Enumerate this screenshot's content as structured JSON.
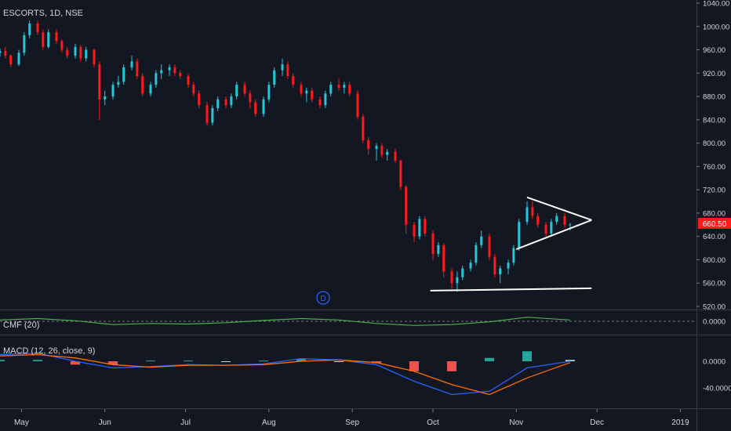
{
  "symbol": "ESCORTS, 1D, NSE",
  "colors": {
    "background": "#131722",
    "grid": "#2a2e39",
    "up": "#26c6da",
    "down": "#ff1a1a",
    "axis_text": "#d1d4dc",
    "drawing": "#ffffff",
    "cmf": "#4caf50",
    "macd": "#2962ff",
    "signal": "#ff6d00",
    "hist_pos": "#26a69a",
    "hist_pos_weak": "#b2dfdb",
    "hist_neg": "#ef5350",
    "hist_neg_weak": "#ffcdd2",
    "price_tag": "#ff1a1a",
    "dividend": "#2962ff"
  },
  "price_axis": {
    "ticks": [
      "1040.00",
      "1000.00",
      "960.00",
      "920.00",
      "880.00",
      "840.00",
      "800.00",
      "760.00",
      "720.00",
      "680.00",
      "640.00",
      "600.00",
      "560.00",
      "520.00"
    ],
    "last_price_label": "660.50"
  },
  "time_axis": {
    "ticks": [
      "May",
      "Jun",
      "Jul",
      "Aug",
      "Sep",
      "Oct",
      "Nov",
      "Dec",
      "2019"
    ]
  },
  "cmf": {
    "label": "CMF (20)",
    "axis_ticks": [
      "0.0000"
    ]
  },
  "macd": {
    "label": "MACD (12, 26, close, 9)",
    "axis_ticks": [
      "0.0000",
      "-40.0000"
    ]
  },
  "dividend_marker": "D",
  "chart_data": [
    {
      "type": "candlestick",
      "title": "ESCORTS, 1D, NSE",
      "ylim": [
        520,
        1040
      ],
      "grid": false,
      "x_range": [
        "2018-04-23",
        "2019-01-07"
      ],
      "last_price": 660.5,
      "ohlc": [
        [
          "2018-04-23",
          955,
          962,
          948,
          958
        ],
        [
          "2018-04-25",
          958,
          965,
          945,
          950
        ],
        [
          "2018-04-27",
          950,
          952,
          930,
          935
        ],
        [
          "2018-04-30",
          935,
          960,
          932,
          955
        ],
        [
          "2018-05-02",
          955,
          990,
          950,
          985
        ],
        [
          "2018-05-04",
          985,
          1010,
          980,
          1005
        ],
        [
          "2018-05-07",
          1005,
          1010,
          985,
          990
        ],
        [
          "2018-05-09",
          990,
          995,
          960,
          965
        ],
        [
          "2018-05-11",
          965,
          995,
          962,
          990
        ],
        [
          "2018-05-14",
          990,
          995,
          970,
          975
        ],
        [
          "2018-05-16",
          975,
          978,
          955,
          960
        ],
        [
          "2018-05-18",
          960,
          965,
          945,
          950
        ],
        [
          "2018-05-21",
          950,
          970,
          945,
          965
        ],
        [
          "2018-05-23",
          965,
          968,
          940,
          945
        ],
        [
          "2018-05-25",
          945,
          965,
          940,
          960
        ],
        [
          "2018-05-28",
          960,
          962,
          930,
          935
        ],
        [
          "2018-05-30",
          935,
          940,
          840,
          875
        ],
        [
          "2018-06-01",
          875,
          890,
          865,
          880
        ],
        [
          "2018-06-04",
          880,
          905,
          875,
          900
        ],
        [
          "2018-06-06",
          900,
          915,
          895,
          905
        ],
        [
          "2018-06-08",
          905,
          935,
          900,
          930
        ],
        [
          "2018-06-11",
          930,
          950,
          925,
          940
        ],
        [
          "2018-06-13",
          940,
          945,
          910,
          915
        ],
        [
          "2018-06-15",
          915,
          920,
          880,
          885
        ],
        [
          "2018-06-18",
          885,
          905,
          880,
          900
        ],
        [
          "2018-06-20",
          900,
          925,
          895,
          920
        ],
        [
          "2018-06-22",
          920,
          935,
          910,
          925
        ],
        [
          "2018-06-25",
          925,
          935,
          915,
          930
        ],
        [
          "2018-06-27",
          930,
          935,
          915,
          920
        ],
        [
          "2018-06-29",
          920,
          925,
          910,
          915
        ],
        [
          "2018-07-02",
          915,
          918,
          895,
          900
        ],
        [
          "2018-07-04",
          900,
          905,
          880,
          885
        ],
        [
          "2018-07-06",
          885,
          890,
          860,
          865
        ],
        [
          "2018-07-09",
          865,
          870,
          830,
          835
        ],
        [
          "2018-07-11",
          835,
          865,
          830,
          860
        ],
        [
          "2018-07-13",
          860,
          880,
          855,
          875
        ],
        [
          "2018-07-16",
          875,
          880,
          860,
          865
        ],
        [
          "2018-07-18",
          865,
          885,
          860,
          880
        ],
        [
          "2018-07-20",
          880,
          905,
          875,
          900
        ],
        [
          "2018-07-23",
          900,
          905,
          880,
          885
        ],
        [
          "2018-07-25",
          885,
          890,
          860,
          870
        ],
        [
          "2018-07-27",
          870,
          875,
          845,
          850
        ],
        [
          "2018-07-30",
          850,
          880,
          845,
          875
        ],
        [
          "2018-08-01",
          875,
          905,
          870,
          900
        ],
        [
          "2018-08-03",
          900,
          930,
          895,
          925
        ],
        [
          "2018-08-06",
          925,
          945,
          915,
          935
        ],
        [
          "2018-08-08",
          935,
          940,
          910,
          915
        ],
        [
          "2018-08-10",
          915,
          920,
          895,
          900
        ],
        [
          "2018-08-13",
          900,
          905,
          880,
          885
        ],
        [
          "2018-08-15",
          885,
          895,
          870,
          890
        ],
        [
          "2018-08-17",
          890,
          895,
          870,
          875
        ],
        [
          "2018-08-20",
          875,
          880,
          860,
          865
        ],
        [
          "2018-08-22",
          865,
          890,
          860,
          885
        ],
        [
          "2018-08-24",
          885,
          905,
          880,
          900
        ],
        [
          "2018-08-27",
          900,
          910,
          890,
          895
        ],
        [
          "2018-08-29",
          895,
          905,
          885,
          900
        ],
        [
          "2018-08-31",
          900,
          905,
          880,
          885
        ],
        [
          "2018-09-03",
          885,
          890,
          840,
          845
        ],
        [
          "2018-09-05",
          845,
          850,
          800,
          805
        ],
        [
          "2018-09-07",
          805,
          810,
          780,
          790
        ],
        [
          "2018-09-10",
          790,
          800,
          770,
          795
        ],
        [
          "2018-09-12",
          795,
          800,
          775,
          780
        ],
        [
          "2018-09-14",
          780,
          790,
          770,
          785
        ],
        [
          "2018-09-17",
          785,
          790,
          765,
          770
        ],
        [
          "2018-09-19",
          770,
          772,
          720,
          725
        ],
        [
          "2018-09-21",
          725,
          728,
          645,
          660
        ],
        [
          "2018-09-24",
          660,
          665,
          630,
          640
        ],
        [
          "2018-09-26",
          640,
          675,
          635,
          670
        ],
        [
          "2018-09-28",
          670,
          675,
          640,
          645
        ],
        [
          "2018-10-01",
          645,
          650,
          600,
          610
        ],
        [
          "2018-10-03",
          610,
          630,
          605,
          625
        ],
        [
          "2018-10-05",
          625,
          628,
          570,
          580
        ],
        [
          "2018-10-08",
          580,
          585,
          550,
          560
        ],
        [
          "2018-10-10",
          560,
          580,
          545,
          570
        ],
        [
          "2018-10-12",
          570,
          590,
          565,
          585
        ],
        [
          "2018-10-15",
          585,
          600,
          580,
          595
        ],
        [
          "2018-10-17",
          595,
          630,
          590,
          625
        ],
        [
          "2018-10-19",
          625,
          650,
          620,
          640
        ],
        [
          "2018-10-22",
          640,
          645,
          600,
          605
        ],
        [
          "2018-10-24",
          605,
          610,
          570,
          575
        ],
        [
          "2018-10-26",
          575,
          590,
          560,
          585
        ],
        [
          "2018-10-29",
          585,
          600,
          575,
          595
        ],
        [
          "2018-10-31",
          595,
          625,
          590,
          620
        ],
        [
          "2018-11-02",
          620,
          670,
          615,
          665
        ],
        [
          "2018-11-05",
          665,
          700,
          660,
          690
        ],
        [
          "2018-11-07",
          690,
          700,
          670,
          675
        ],
        [
          "2018-11-09",
          675,
          680,
          655,
          660
        ],
        [
          "2018-11-12",
          660,
          665,
          640,
          645
        ],
        [
          "2018-11-14",
          645,
          670,
          640,
          665
        ],
        [
          "2018-11-16",
          665,
          680,
          660,
          675
        ],
        [
          "2018-11-19",
          675,
          680,
          655,
          660
        ],
        [
          "2018-11-21",
          660,
          663,
          650,
          660.5
        ]
      ]
    },
    {
      "type": "line",
      "title": "CMF (20)",
      "ylim": [
        -0.3,
        0.3
      ],
      "x": [
        "2018-04-23",
        "2018-05-07",
        "2018-05-21",
        "2018-06-04",
        "2018-06-18",
        "2018-07-02",
        "2018-07-16",
        "2018-07-30",
        "2018-08-13",
        "2018-08-27",
        "2018-09-10",
        "2018-09-24",
        "2018-10-08",
        "2018-10-22",
        "2018-11-05",
        "2018-11-21"
      ],
      "series": [
        {
          "values": [
            0.05,
            0.1,
            0.02,
            -0.12,
            -0.08,
            -0.1,
            -0.05,
            0.03,
            0.1,
            0.05,
            -0.08,
            -0.15,
            -0.12,
            -0.02,
            0.15,
            0.05
          ]
        }
      ]
    },
    {
      "type": "line",
      "title": "MACD (12, 26, close, 9)",
      "ylim": [
        -60,
        20
      ],
      "x": [
        "2018-04-23",
        "2018-05-07",
        "2018-05-21",
        "2018-06-04",
        "2018-06-18",
        "2018-07-02",
        "2018-07-16",
        "2018-07-30",
        "2018-08-13",
        "2018-08-27",
        "2018-09-10",
        "2018-09-24",
        "2018-10-08",
        "2018-10-22",
        "2018-11-05",
        "2018-11-21"
      ],
      "series": [
        {
          "values": [
            10,
            12,
            0,
            -10,
            -8,
            -5,
            -6,
            -4,
            4,
            2,
            -5,
            -30,
            -50,
            -45,
            -10,
            0
          ]
        },
        {
          "values": [
            8,
            10,
            5,
            -5,
            -9,
            -6,
            -6,
            -5,
            0,
            2,
            -2,
            -15,
            -35,
            -50,
            -25,
            -2
          ]
        },
        {
          "values": [
            2,
            2,
            -5,
            -5,
            1,
            1,
            0,
            1,
            4,
            0,
            -3,
            -15,
            -15,
            5,
            15,
            2
          ]
        }
      ]
    }
  ]
}
